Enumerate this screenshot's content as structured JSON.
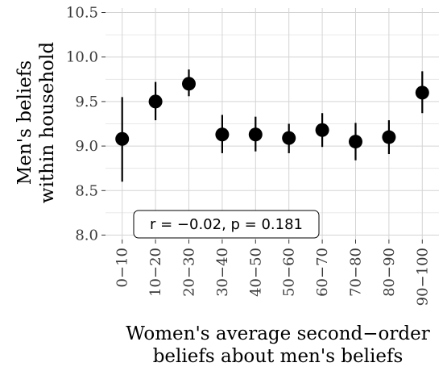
{
  "chart_data": {
    "type": "scatter",
    "xlabel_lines": [
      "Women's average second−order",
      "beliefs about men's beliefs"
    ],
    "ylabel_lines": [
      "Men's beliefs",
      "within household"
    ],
    "categories": [
      "0−10",
      "10−20",
      "20−30",
      "30−40",
      "40−50",
      "50−60",
      "60−70",
      "70−80",
      "80−90",
      "90−100"
    ],
    "values": [
      9.08,
      9.5,
      9.7,
      9.13,
      9.13,
      9.09,
      9.18,
      9.05,
      9.1,
      9.6
    ],
    "ci_lower": [
      8.6,
      9.29,
      9.56,
      8.92,
      8.94,
      8.92,
      8.99,
      8.84,
      8.91,
      9.37
    ],
    "ci_upper": [
      9.55,
      9.72,
      9.86,
      9.35,
      9.33,
      9.25,
      9.37,
      9.26,
      9.29,
      9.84
    ],
    "ylim": [
      7.95,
      10.55
    ],
    "yticks": [
      8.0,
      8.5,
      9.0,
      9.5,
      10.0,
      10.5
    ],
    "ytick_labels": [
      "8.0",
      "8.5",
      "9.0",
      "9.5",
      "10.0",
      "10.5"
    ],
    "grid": true,
    "annotation": "r = −0.02, p = 0.181",
    "colors": {
      "panel": "#ebebeb",
      "grid_major": "#d4d4d4",
      "grid_minor": "#e2e2e2",
      "point": "#000000",
      "panel_bg": "#ffffff"
    }
  }
}
